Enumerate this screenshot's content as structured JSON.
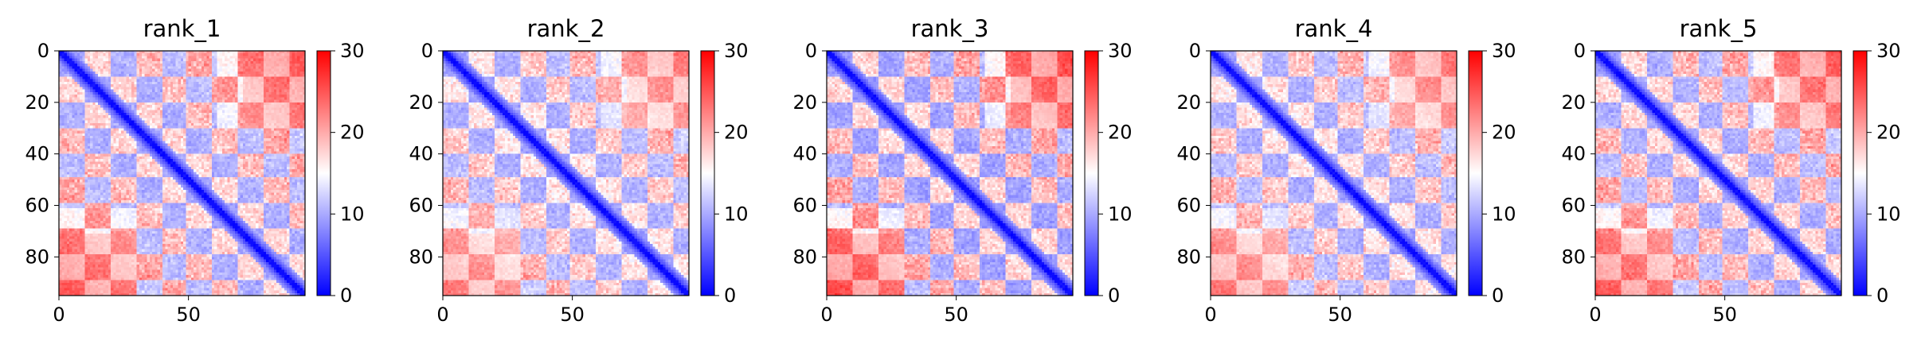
{
  "chart_data": [
    {
      "type": "heatmap",
      "title": "rank_1",
      "xticks": [
        0,
        50
      ],
      "yticks": [
        0,
        20,
        40,
        60,
        80
      ],
      "xlim": [
        0,
        95
      ],
      "ylim": [
        95,
        0
      ],
      "matrix_size": 95,
      "colorbar": {
        "ticks": [
          0,
          10,
          20,
          30
        ],
        "range": [
          0,
          30
        ],
        "colormap": "bwr"
      },
      "pattern": {
        "diagonal": 0,
        "blue_blocks": 10,
        "red_blocks": 22,
        "top_right": 24,
        "bottom_left": 24,
        "seed": 11
      }
    },
    {
      "type": "heatmap",
      "title": "rank_2",
      "xticks": [
        0,
        50
      ],
      "yticks": [
        0,
        20,
        40,
        60,
        80
      ],
      "xlim": [
        0,
        95
      ],
      "ylim": [
        95,
        0
      ],
      "matrix_size": 95,
      "colorbar": {
        "ticks": [
          0,
          10,
          20,
          30
        ],
        "range": [
          0,
          30
        ],
        "colormap": "bwr"
      },
      "pattern": {
        "diagonal": 0,
        "blue_blocks": 10,
        "red_blocks": 21,
        "top_right": 21,
        "bottom_left": 22,
        "seed": 23
      }
    },
    {
      "type": "heatmap",
      "title": "rank_3",
      "xticks": [
        0,
        50
      ],
      "yticks": [
        0,
        20,
        40,
        60,
        80
      ],
      "xlim": [
        0,
        95
      ],
      "ylim": [
        95,
        0
      ],
      "matrix_size": 95,
      "colorbar": {
        "ticks": [
          0,
          10,
          20,
          30
        ],
        "range": [
          0,
          30
        ],
        "colormap": "bwr"
      },
      "pattern": {
        "diagonal": 0,
        "blue_blocks": 9,
        "red_blocks": 22,
        "top_right": 26,
        "bottom_left": 25,
        "seed": 37
      }
    },
    {
      "type": "heatmap",
      "title": "rank_4",
      "xticks": [
        0,
        50
      ],
      "yticks": [
        0,
        20,
        40,
        60,
        80
      ],
      "xlim": [
        0,
        95
      ],
      "ylim": [
        95,
        0
      ],
      "matrix_size": 95,
      "colorbar": {
        "ticks": [
          0,
          10,
          20,
          30
        ],
        "range": [
          0,
          30
        ],
        "colormap": "bwr"
      },
      "pattern": {
        "diagonal": 0,
        "blue_blocks": 10,
        "red_blocks": 21,
        "top_right": 21,
        "bottom_left": 23,
        "seed": 51
      }
    },
    {
      "type": "heatmap",
      "title": "rank_5",
      "xticks": [
        0,
        50
      ],
      "yticks": [
        0,
        20,
        40,
        60,
        80
      ],
      "xlim": [
        0,
        95
      ],
      "ylim": [
        95,
        0
      ],
      "matrix_size": 95,
      "colorbar": {
        "ticks": [
          0,
          10,
          20,
          30
        ],
        "range": [
          0,
          30
        ],
        "colormap": "bwr"
      },
      "pattern": {
        "diagonal": 0,
        "blue_blocks": 10,
        "red_blocks": 22,
        "top_right": 24,
        "bottom_left": 24,
        "seed": 67
      }
    }
  ]
}
